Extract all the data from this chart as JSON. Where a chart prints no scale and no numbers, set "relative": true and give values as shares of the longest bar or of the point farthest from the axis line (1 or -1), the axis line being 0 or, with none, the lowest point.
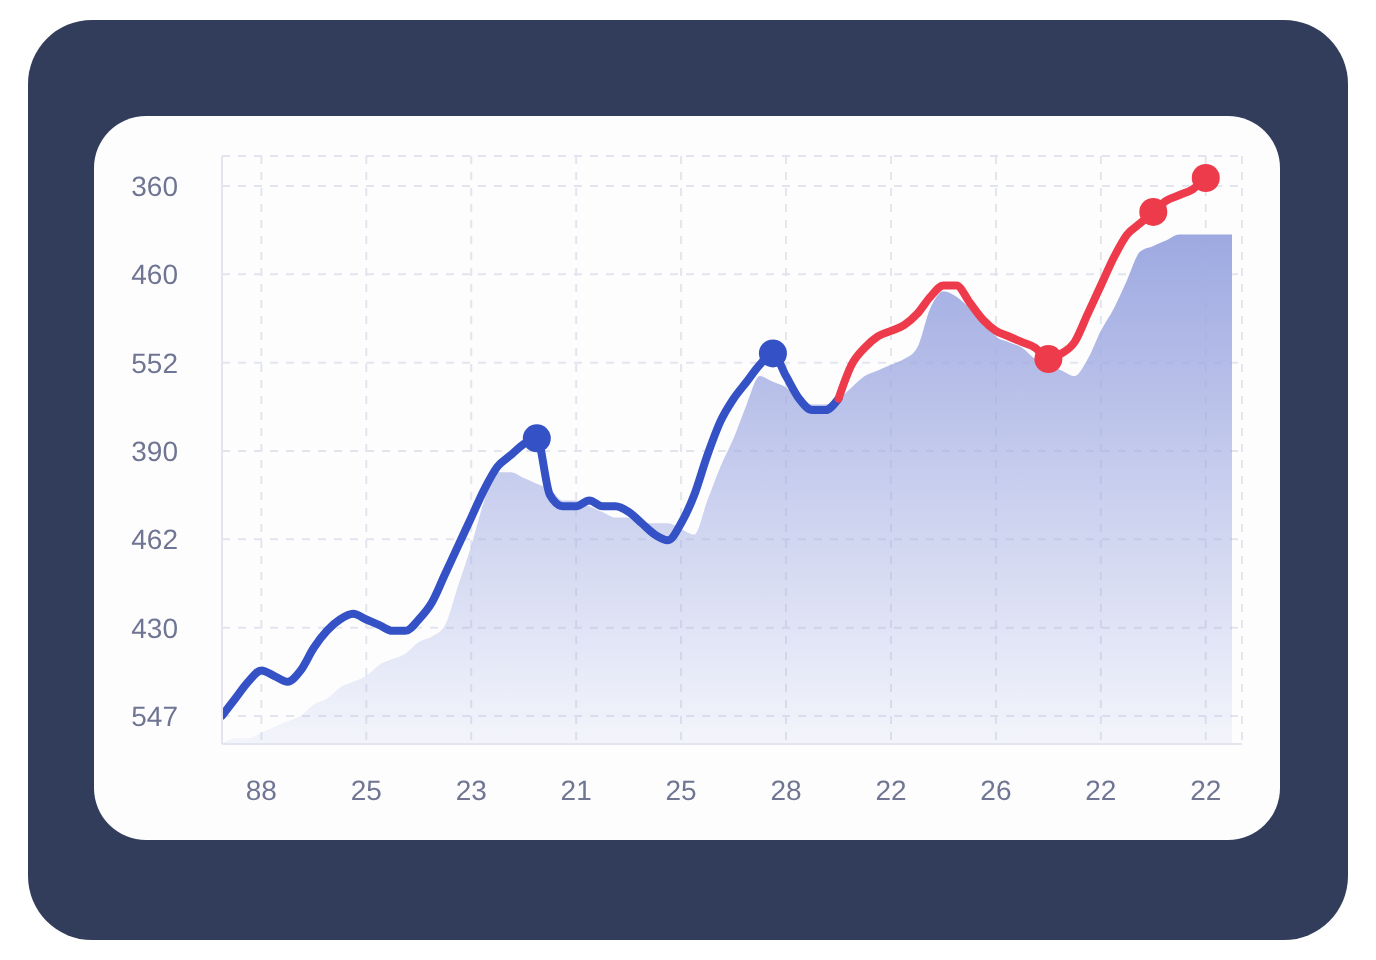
{
  "chart_data": {
    "type": "line",
    "relative": true,
    "grid": true,
    "categories": [
      null,
      null,
      null,
      "88",
      null,
      null,
      null,
      null,
      null,
      null,
      null,
      "25",
      null,
      null,
      null,
      null,
      null,
      null,
      null,
      "23",
      null,
      null,
      null,
      null,
      null,
      null,
      null,
      "21",
      null,
      null,
      null,
      null,
      null,
      null,
      null,
      "25",
      null,
      null,
      null,
      null,
      null,
      null,
      null,
      "28",
      null,
      null,
      null,
      null,
      null,
      null,
      null,
      "22",
      null,
      null,
      null,
      null,
      null,
      null,
      null,
      "26",
      null,
      null,
      null,
      null,
      null,
      null,
      null,
      "22",
      null,
      null,
      null,
      null,
      null,
      null,
      null,
      "22",
      null,
      null
    ],
    "y_categories": [
      "360",
      "460",
      "552",
      "390",
      "462",
      "430",
      "547"
    ],
    "series": [
      {
        "type": "area",
        "color": "#9ea9e1",
        "values": [
          0,
          0.01,
          0.01,
          0.02,
          0.03,
          0.04,
          0.05,
          0.07,
          0.08,
          0.1,
          0.11,
          0.12,
          0.14,
          0.15,
          0.16,
          0.18,
          0.19,
          0.21,
          0.28,
          0.35,
          0.43,
          0.48,
          0.48,
          0.47,
          0.46,
          0.45,
          0.43,
          0.43,
          0.42,
          0.41,
          0.4,
          0.4,
          0.39,
          0.39,
          0.39,
          0.38,
          0.37,
          0.43,
          0.49,
          0.54,
          0.6,
          0.65,
          0.64,
          0.63,
          0.61,
          0.6,
          0.6,
          0.61,
          0.63,
          0.65,
          0.66,
          0.67,
          0.68,
          0.7,
          0.77,
          0.8,
          0.79,
          0.77,
          0.75,
          0.72,
          0.71,
          0.7,
          0.68,
          0.67,
          0.66,
          0.65,
          0.68,
          0.73,
          0.77,
          0.82,
          0.87,
          0.88,
          0.89,
          0.9,
          0.9,
          0.9,
          0.9,
          0.9
        ]
      },
      {
        "color": "#3452c5",
        "values": [
          0.05,
          0.08,
          0.11,
          0.13,
          0.12,
          0.11,
          0.13,
          0.17,
          0.2,
          0.22,
          0.23,
          0.22,
          0.21,
          0.2,
          0.2,
          0.22,
          0.25,
          0.3,
          0.35,
          0.4,
          0.45,
          0.49,
          0.51,
          0.53,
          0.54,
          0.44,
          0.42,
          0.42,
          0.43,
          0.42,
          0.42,
          0.41,
          0.39,
          0.37,
          0.36,
          0.39,
          0.44,
          0.51,
          0.57,
          0.61,
          0.64,
          0.67,
          0.69,
          0.65,
          0.61,
          0.59,
          0.59,
          0.61,
          null,
          null,
          null,
          null,
          null,
          null,
          null,
          null,
          null,
          null,
          null,
          null,
          null,
          null,
          null,
          null,
          null,
          null,
          null,
          null,
          null,
          null,
          null,
          null,
          null,
          null,
          null,
          null,
          null,
          null
        ]
      },
      {
        "color": "#ee3b4c",
        "values": [
          null,
          null,
          null,
          null,
          null,
          null,
          null,
          null,
          null,
          null,
          null,
          null,
          null,
          null,
          null,
          null,
          null,
          null,
          null,
          null,
          null,
          null,
          null,
          null,
          null,
          null,
          null,
          null,
          null,
          null,
          null,
          null,
          null,
          null,
          null,
          null,
          null,
          null,
          null,
          null,
          null,
          null,
          null,
          null,
          null,
          null,
          null,
          0.61,
          0.67,
          0.7,
          0.72,
          0.73,
          0.74,
          0.76,
          0.79,
          0.81,
          0.81,
          0.78,
          0.75,
          0.73,
          0.72,
          0.71,
          0.7,
          0.68,
          0.69,
          0.71,
          0.76,
          0.81,
          0.86,
          0.9,
          0.92,
          0.94,
          0.96,
          0.97,
          0.98,
          1,
          null,
          null
        ]
      },
      {
        "type": "scatter",
        "color": "#3452c5",
        "marker": "circle",
        "values": [
          null,
          null,
          null,
          null,
          null,
          null,
          null,
          null,
          null,
          null,
          null,
          null,
          null,
          null,
          null,
          null,
          null,
          null,
          null,
          null,
          null,
          null,
          null,
          null,
          0.54,
          null,
          null,
          null,
          null,
          null,
          null,
          null,
          null,
          null,
          null,
          null,
          null,
          null,
          null,
          null,
          null,
          null,
          0.69,
          null,
          null,
          null,
          null,
          null,
          null,
          null,
          null,
          null,
          null,
          null,
          null,
          null,
          null,
          null,
          null,
          null,
          null,
          null,
          null,
          null,
          null,
          null,
          null,
          null,
          null,
          null,
          null,
          null,
          null,
          null,
          null,
          null,
          null,
          null
        ]
      },
      {
        "type": "scatter",
        "color": "#ee3b4c",
        "marker": "circle",
        "values": [
          null,
          null,
          null,
          null,
          null,
          null,
          null,
          null,
          null,
          null,
          null,
          null,
          null,
          null,
          null,
          null,
          null,
          null,
          null,
          null,
          null,
          null,
          null,
          null,
          null,
          null,
          null,
          null,
          null,
          null,
          null,
          null,
          null,
          null,
          null,
          null,
          null,
          null,
          null,
          null,
          null,
          null,
          null,
          null,
          null,
          null,
          null,
          null,
          null,
          null,
          null,
          null,
          null,
          null,
          null,
          null,
          null,
          null,
          null,
          null,
          null,
          null,
          null,
          0.68,
          null,
          null,
          null,
          null,
          null,
          null,
          null,
          0.94,
          null,
          null,
          null,
          1,
          null,
          null
        ]
      }
    ]
  }
}
